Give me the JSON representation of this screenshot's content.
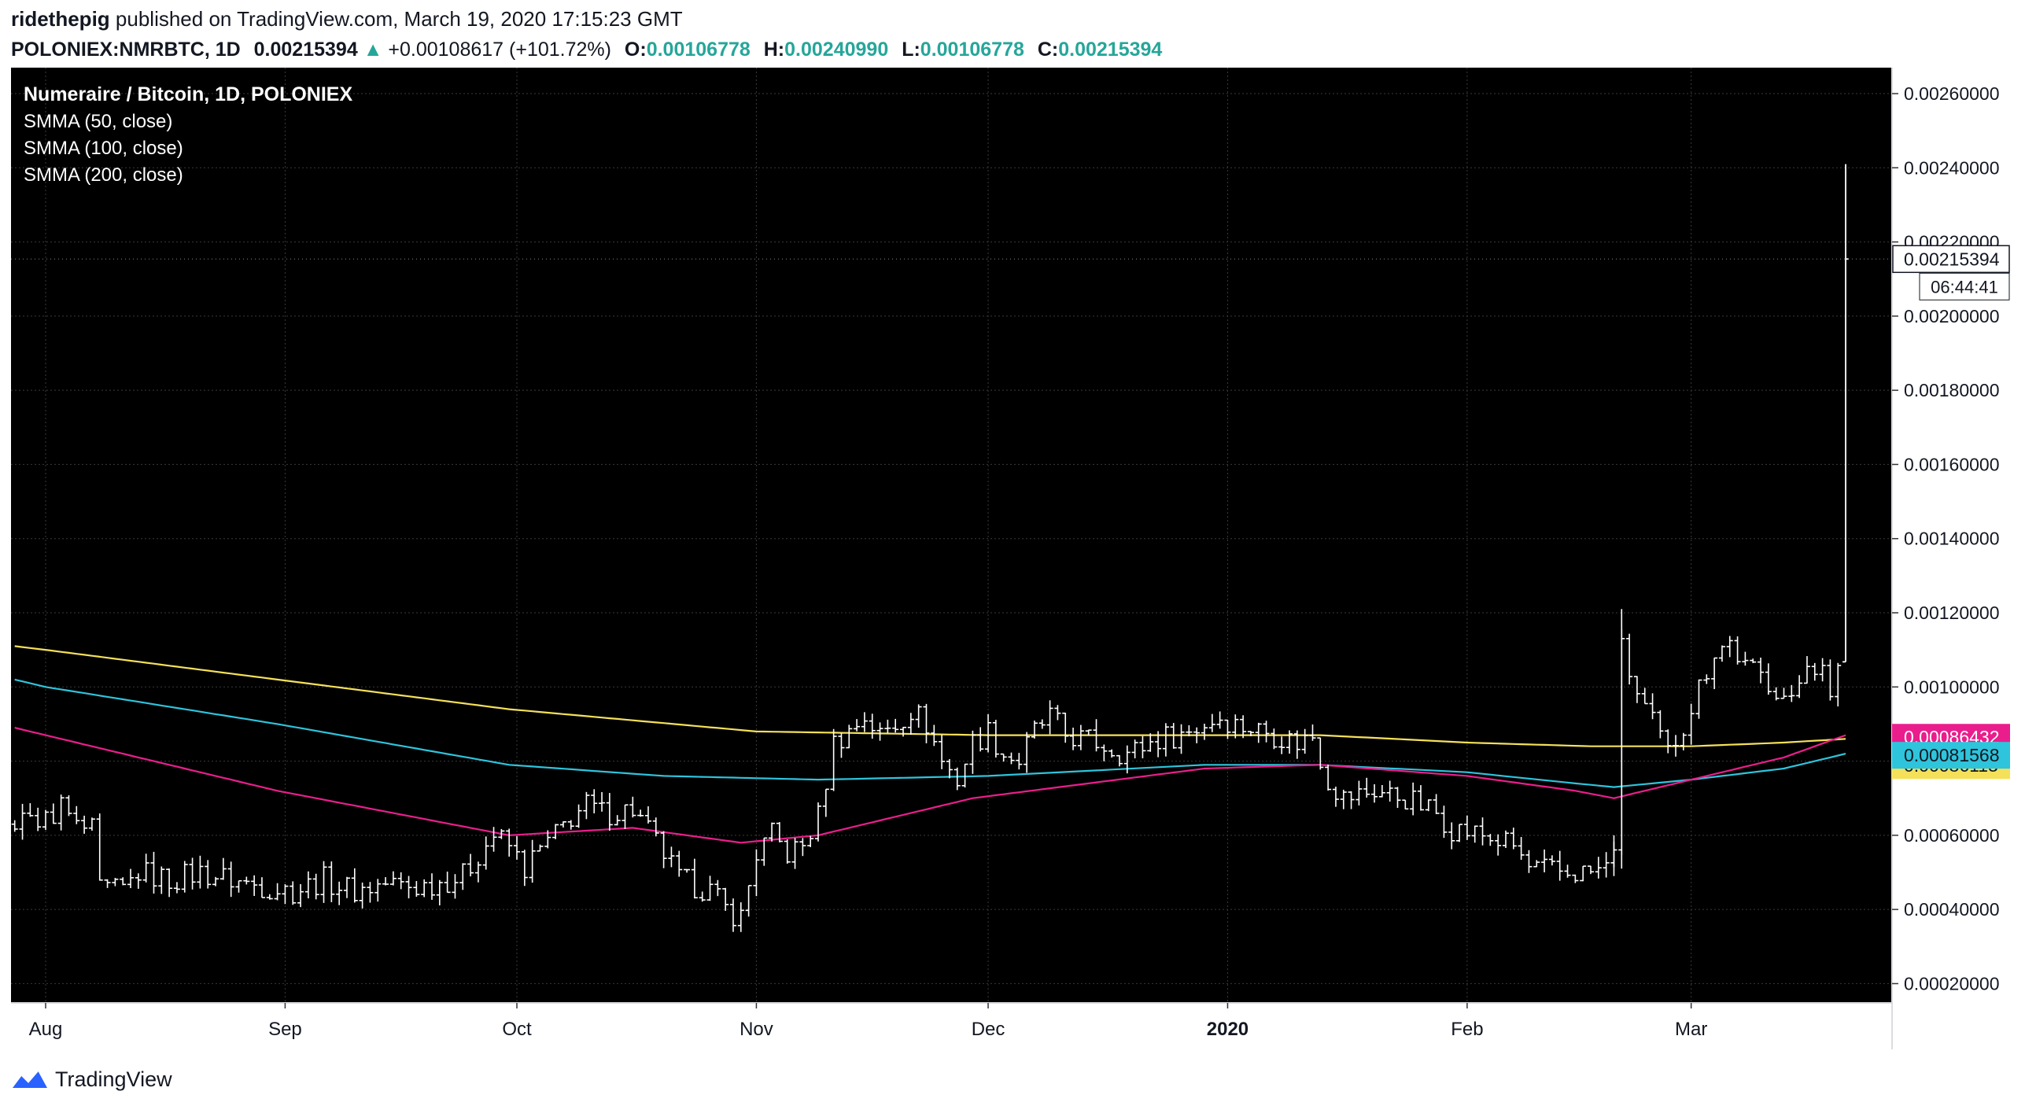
{
  "header": {
    "author": "ridethepig",
    "published_text": "published on TradingView.com, March 19, 2020 17:15:23 GMT",
    "symbol": "POLONIEX:NMRBTC, 1D",
    "last": "0.00215394",
    "change": "+0.00108617 (+101.72%)",
    "open_label": "O:",
    "open": "0.00106778",
    "high_label": "H:",
    "high": "0.00240990",
    "low_label": "L:",
    "low": "0.00106778",
    "close_label": "C:",
    "close": "0.00215394"
  },
  "legend": {
    "title": "Numeraire / Bitcoin, 1D, POLONIEX",
    "indicators": [
      "SMMA (50, close)",
      "SMMA (100, close)",
      "SMMA (200, close)"
    ]
  },
  "footer": {
    "brand": "TradingView"
  },
  "colors": {
    "background": "#000000",
    "bars": "#ffffff",
    "smma50": "#e91e8c",
    "smma100": "#2ec4dc",
    "smma200": "#f5e05a",
    "grid": "#3a3a3a",
    "brand_blue": "#2962ff"
  },
  "chart_data": {
    "type": "ohlc",
    "y_range": [
      0.00015,
      0.00267
    ],
    "x_range_days": [
      0,
      250
    ],
    "y_ticks": [
      "0.00020000",
      "0.00040000",
      "0.00060000",
      "0.00080000",
      "0.00100000",
      "0.00120000",
      "0.00140000",
      "0.00160000",
      "0.00180000",
      "0.00200000",
      "0.00220000",
      "0.00240000",
      "0.00260000"
    ],
    "x_ticks": [
      {
        "label": "Aug",
        "day": 0,
        "bold": false
      },
      {
        "label": "Sep",
        "day": 31,
        "bold": false
      },
      {
        "label": "Oct",
        "day": 61,
        "bold": false
      },
      {
        "label": "Nov",
        "day": 92,
        "bold": false
      },
      {
        "label": "Dec",
        "day": 122,
        "bold": false
      },
      {
        "label": "2020",
        "day": 153,
        "bold": true
      },
      {
        "label": "Feb",
        "day": 184,
        "bold": false
      },
      {
        "label": "Mar",
        "day": 213,
        "bold": false
      }
    ],
    "price_anchors": [
      [
        -4,
        0.00063
      ],
      [
        0,
        0.00064
      ],
      [
        2,
        0.00068
      ],
      [
        4,
        0.00062
      ],
      [
        6,
        0.00061
      ],
      [
        7,
        0.00045
      ],
      [
        10,
        0.00045
      ],
      [
        12,
        0.0005
      ],
      [
        16,
        0.00048
      ],
      [
        20,
        0.0005
      ],
      [
        26,
        0.00047
      ],
      [
        32,
        0.00045
      ],
      [
        36,
        0.00048
      ],
      [
        40,
        0.00045
      ],
      [
        44,
        0.00047
      ],
      [
        48,
        0.00046
      ],
      [
        54,
        0.00049
      ],
      [
        56,
        0.00055
      ],
      [
        58,
        0.0006
      ],
      [
        60,
        0.00057
      ],
      [
        62,
        0.00051
      ],
      [
        64,
        0.00056
      ],
      [
        66,
        0.0006
      ],
      [
        68,
        0.00065
      ],
      [
        70,
        0.00068
      ],
      [
        72,
        0.00066
      ],
      [
        76,
        0.00067
      ],
      [
        80,
        0.00055
      ],
      [
        82,
        0.00048
      ],
      [
        86,
        0.00045
      ],
      [
        88,
        0.0004
      ],
      [
        90,
        0.00038
      ],
      [
        92,
        0.00055
      ],
      [
        94,
        0.0006
      ],
      [
        96,
        0.00055
      ],
      [
        98,
        0.00057
      ],
      [
        100,
        0.00065
      ],
      [
        102,
        0.00085
      ],
      [
        104,
        0.00088
      ],
      [
        106,
        0.00092
      ],
      [
        108,
        0.00087
      ],
      [
        110,
        0.0009
      ],
      [
        112,
        0.00094
      ],
      [
        114,
        0.0009
      ],
      [
        116,
        0.0008
      ],
      [
        118,
        0.00075
      ],
      [
        120,
        0.00085
      ],
      [
        122,
        0.00088
      ],
      [
        124,
        0.00082
      ],
      [
        126,
        0.0008
      ],
      [
        128,
        0.00088
      ],
      [
        130,
        0.00092
      ],
      [
        132,
        0.00087
      ],
      [
        136,
        0.00085
      ],
      [
        140,
        0.00082
      ],
      [
        144,
        0.00086
      ],
      [
        148,
        0.00088
      ],
      [
        152,
        0.00092
      ],
      [
        154,
        0.0009
      ],
      [
        158,
        0.00088
      ],
      [
        162,
        0.00085
      ],
      [
        164,
        0.00087
      ],
      [
        166,
        0.00075
      ],
      [
        168,
        0.0007
      ],
      [
        172,
        0.00072
      ],
      [
        176,
        0.0007
      ],
      [
        180,
        0.00066
      ],
      [
        182,
        0.00062
      ],
      [
        186,
        0.0006
      ],
      [
        190,
        0.00057
      ],
      [
        192,
        0.00051
      ],
      [
        196,
        0.0005
      ],
      [
        200,
        0.0005
      ],
      [
        202,
        0.00051
      ],
      [
        203,
        0.00058
      ],
      [
        204,
        0.0011
      ],
      [
        206,
        0.00098
      ],
      [
        208,
        0.0009
      ],
      [
        210,
        0.00082
      ],
      [
        212,
        0.0009
      ],
      [
        214,
        0.001
      ],
      [
        216,
        0.0011
      ],
      [
        218,
        0.00112
      ],
      [
        220,
        0.00105
      ],
      [
        222,
        0.00103
      ],
      [
        224,
        0.001
      ],
      [
        226,
        0.00095
      ],
      [
        228,
        0.00108
      ],
      [
        230,
        0.00104
      ],
      [
        231,
        0.00095
      ],
      [
        232,
        0.00107
      ],
      [
        233,
        0.00215
      ]
    ],
    "last_bar": {
      "day": 233,
      "open": 0.00106778,
      "high": 0.0024099,
      "low": 0.00106778,
      "close": 0.00215394
    },
    "series": [
      {
        "name": "SMMA (200, close)",
        "color_key": "smma200",
        "last_label": "0.00086113",
        "anchors": [
          [
            -4,
            0.00111
          ],
          [
            0,
            0.0011
          ],
          [
            30,
            0.00102
          ],
          [
            60,
            0.00094
          ],
          [
            92,
            0.00088
          ],
          [
            122,
            0.00087
          ],
          [
            150,
            0.00087
          ],
          [
            165,
            0.00087
          ],
          [
            184,
            0.00085
          ],
          [
            200,
            0.00084
          ],
          [
            203,
            0.00084
          ],
          [
            213,
            0.00084
          ],
          [
            225,
            0.00085
          ],
          [
            233,
            0.00086
          ]
        ]
      },
      {
        "name": "SMMA (100, close)",
        "color_key": "smma100",
        "last_label": "0.00081568",
        "anchors": [
          [
            -4,
            0.00102
          ],
          [
            0,
            0.001
          ],
          [
            30,
            0.0009
          ],
          [
            60,
            0.00079
          ],
          [
            80,
            0.00076
          ],
          [
            100,
            0.00075
          ],
          [
            122,
            0.00076
          ],
          [
            150,
            0.00079
          ],
          [
            165,
            0.00079
          ],
          [
            184,
            0.00077
          ],
          [
            198,
            0.00074
          ],
          [
            203,
            0.00073
          ],
          [
            213,
            0.00075
          ],
          [
            225,
            0.00078
          ],
          [
            233,
            0.00082
          ]
        ]
      },
      {
        "name": "SMMA (50, close)",
        "color_key": "smma50",
        "last_label": "0.00086432",
        "anchors": [
          [
            -4,
            0.00089
          ],
          [
            0,
            0.00087
          ],
          [
            30,
            0.00072
          ],
          [
            60,
            0.0006
          ],
          [
            76,
            0.00062
          ],
          [
            90,
            0.00058
          ],
          [
            100,
            0.0006
          ],
          [
            120,
            0.0007
          ],
          [
            150,
            0.00078
          ],
          [
            165,
            0.00079
          ],
          [
            184,
            0.00076
          ],
          [
            198,
            0.00072
          ],
          [
            203,
            0.0007
          ],
          [
            213,
            0.00075
          ],
          [
            225,
            0.00081
          ],
          [
            233,
            0.00087
          ]
        ]
      }
    ],
    "last_price_label": "0.00215394",
    "countdown": "06:44:41"
  }
}
